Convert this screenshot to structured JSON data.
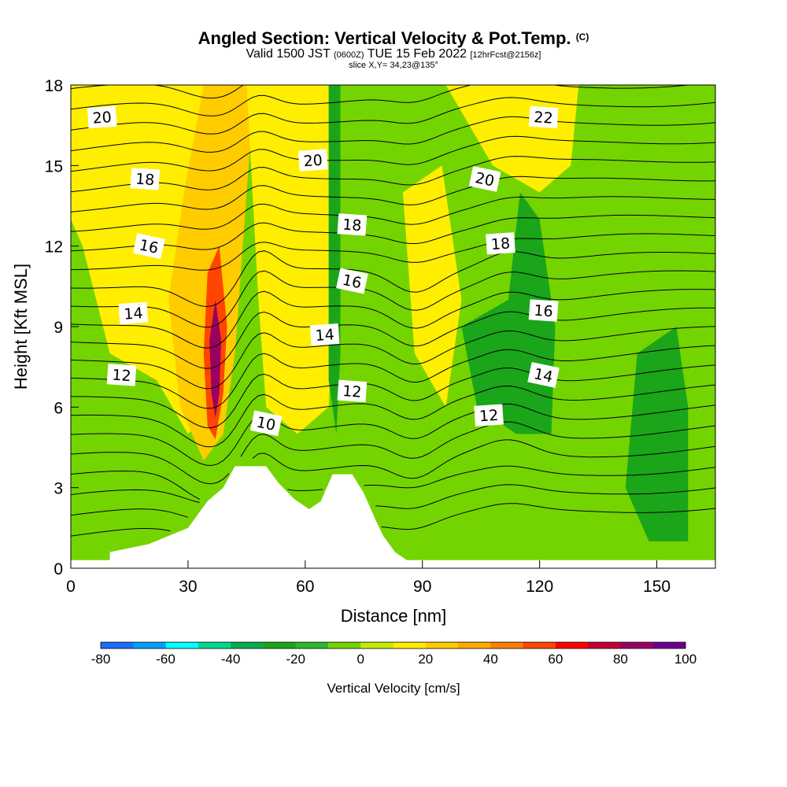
{
  "header": {
    "title_main": "Angled Section: Vertical Velocity & Pot.Temp.",
    "title_copyright": "(C)",
    "valid_prefix": "Valid 1500 JST",
    "valid_zulu": "(0600Z)",
    "valid_date": "TUE 15 Feb 2022",
    "forecast_info": "[12hrFcst@2156z]",
    "slice_info": "slice X,Y= 34,23@135°"
  },
  "chart_data": {
    "type": "heatmap",
    "xlabel": "Distance [nm]",
    "ylabel": "Height [Kft MSL]",
    "xlim": [
      0,
      165
    ],
    "ylim": [
      0,
      18
    ],
    "x_ticks": [
      0,
      30,
      60,
      90,
      120,
      150
    ],
    "y_ticks": [
      0,
      3,
      6,
      9,
      12,
      15,
      18
    ],
    "colorbar": {
      "label": "Vertical Velocity [cm/s]",
      "tick_labels": [
        "-80",
        "-60",
        "-40",
        "-20",
        "0",
        "20",
        "40",
        "60",
        "80",
        "100"
      ],
      "levels": [
        -80,
        -70,
        -60,
        -50,
        -40,
        -30,
        -20,
        -10,
        0,
        10,
        20,
        30,
        40,
        50,
        60,
        70,
        80,
        90,
        100
      ],
      "colors": [
        "#0000ff",
        "#1e6cff",
        "#00a0ff",
        "#00ffff",
        "#00d890",
        "#00b050",
        "#1aa51a",
        "#2cba2c",
        "#74d400",
        "#c8ea00",
        "#ffee00",
        "#ffcc00",
        "#ffaa00",
        "#ff7d00",
        "#ff4500",
        "#ff0000",
        "#c40032",
        "#9a0060",
        "#6a008e"
      ]
    },
    "vertical_velocity_regions": [
      {
        "desc": "background",
        "level": 0
      },
      {
        "desc": "west updraft band",
        "level": 20,
        "pts": [
          [
            0,
            18
          ],
          [
            35,
            18
          ],
          [
            38,
            10
          ],
          [
            36,
            6
          ],
          [
            30,
            5
          ],
          [
            22,
            7
          ],
          [
            10,
            8
          ],
          [
            3,
            12
          ],
          [
            0,
            13
          ]
        ]
      },
      {
        "desc": "orange band",
        "level": 30,
        "pts": [
          [
            34,
            18
          ],
          [
            47,
            18
          ],
          [
            44,
            12
          ],
          [
            42,
            8
          ],
          [
            39,
            5
          ],
          [
            34,
            4
          ],
          [
            28,
            6
          ],
          [
            25,
            10
          ],
          [
            29,
            14
          ]
        ]
      },
      {
        "desc": "core",
        "level": 60,
        "pts": [
          [
            38,
            12
          ],
          [
            40,
            9
          ],
          [
            39,
            6.5
          ],
          [
            37,
            4.8
          ],
          [
            35,
            5.3
          ],
          [
            34,
            8
          ],
          [
            35,
            11
          ]
        ]
      },
      {
        "desc": "core max",
        "level": 90,
        "pts": [
          [
            37,
            10
          ],
          [
            38.5,
            8.5
          ],
          [
            38,
            6.5
          ],
          [
            37,
            5.6
          ],
          [
            36,
            6.5
          ],
          [
            35.5,
            8.5
          ]
        ]
      },
      {
        "desc": "central updraft",
        "level": 20,
        "pts": [
          [
            45,
            18
          ],
          [
            68,
            18
          ],
          [
            68,
            12
          ],
          [
            66,
            6
          ],
          [
            58,
            5
          ],
          [
            50,
            6
          ],
          [
            48,
            10
          ]
        ]
      },
      {
        "desc": "downdraft column",
        "level": -20,
        "pts": [
          [
            66,
            18
          ],
          [
            69,
            18
          ],
          [
            69,
            8
          ],
          [
            68,
            5
          ],
          [
            66,
            7
          ]
        ]
      },
      {
        "desc": "east downdraft",
        "level": -20,
        "pts": [
          [
            100,
            9
          ],
          [
            112,
            10
          ],
          [
            115,
            14
          ],
          [
            120,
            13
          ],
          [
            124,
            9
          ],
          [
            123,
            5
          ],
          [
            114,
            5
          ],
          [
            104,
            6
          ]
        ]
      },
      {
        "desc": "far east downdraft",
        "level": -20,
        "pts": [
          [
            145,
            8
          ],
          [
            155,
            9
          ],
          [
            158,
            6
          ],
          [
            158,
            1
          ],
          [
            148,
            1
          ],
          [
            142,
            3
          ]
        ]
      },
      {
        "desc": "east updraft pocket",
        "level": 20,
        "pts": [
          [
            85,
            14
          ],
          [
            95,
            15
          ],
          [
            100,
            10
          ],
          [
            96,
            6
          ],
          [
            88,
            8
          ]
        ]
      },
      {
        "desc": "northeast yellow",
        "level": 20,
        "pts": [
          [
            96,
            18
          ],
          [
            130,
            18
          ],
          [
            128,
            15
          ],
          [
            120,
            14
          ],
          [
            108,
            15
          ]
        ]
      }
    ],
    "potential_temperature_contours": {
      "unit": "°C",
      "labeled_values": [
        10,
        12,
        14,
        16,
        18,
        20,
        22
      ],
      "labels": [
        {
          "x": 8,
          "y": 16.8,
          "text": "20"
        },
        {
          "x": 19,
          "y": 14.5,
          "text": "18"
        },
        {
          "x": 20,
          "y": 12,
          "text": "16"
        },
        {
          "x": 16,
          "y": 9.5,
          "text": "14"
        },
        {
          "x": 13,
          "y": 7.2,
          "text": "12"
        },
        {
          "x": 50,
          "y": 5.4,
          "text": "10"
        },
        {
          "x": 62,
          "y": 15.2,
          "text": "20"
        },
        {
          "x": 72,
          "y": 12.8,
          "text": "18"
        },
        {
          "x": 72,
          "y": 10.7,
          "text": "16"
        },
        {
          "x": 65,
          "y": 8.7,
          "text": "14"
        },
        {
          "x": 72,
          "y": 6.6,
          "text": "12"
        },
        {
          "x": 106,
          "y": 14.5,
          "text": "20"
        },
        {
          "x": 110,
          "y": 12.1,
          "text": "18"
        },
        {
          "x": 121,
          "y": 9.6,
          "text": "16"
        },
        {
          "x": 121,
          "y": 7.2,
          "text": "14"
        },
        {
          "x": 107,
          "y": 5.7,
          "text": "12"
        },
        {
          "x": 121,
          "y": 16.8,
          "text": "22"
        }
      ]
    },
    "terrain": [
      [
        0,
        0.3
      ],
      [
        10,
        0.3
      ],
      [
        10,
        0.6
      ],
      [
        20,
        0.9
      ],
      [
        30,
        1.5
      ],
      [
        35,
        2.5
      ],
      [
        39,
        3
      ],
      [
        42,
        3.8
      ],
      [
        50,
        3.8
      ],
      [
        53,
        3.2
      ],
      [
        57,
        2.6
      ],
      [
        61,
        2.2
      ],
      [
        64,
        2.5
      ],
      [
        67,
        3.5
      ],
      [
        72,
        3.5
      ],
      [
        75,
        2.8
      ],
      [
        78,
        1.8
      ],
      [
        80,
        1.2
      ],
      [
        83,
        0.6
      ],
      [
        86,
        0.3
      ],
      [
        165,
        0.3
      ]
    ]
  }
}
